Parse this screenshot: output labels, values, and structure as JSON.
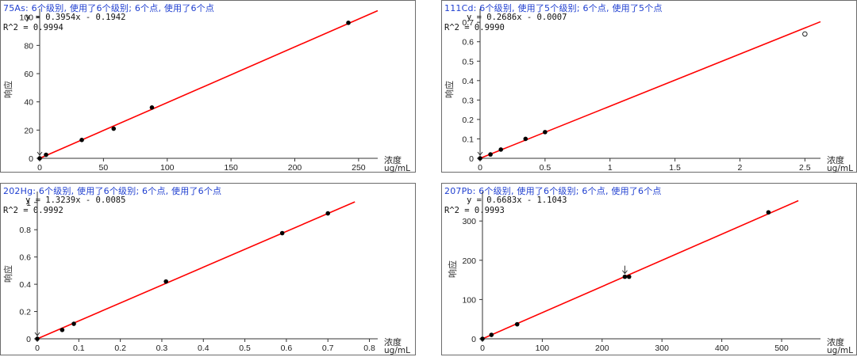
{
  "chart_data": [
    {
      "type": "scatter",
      "title": "75As: 6个级别, 使用了6个级别; 6个点, 使用了6个点",
      "equation": "y = 0.3954x - 0.1942",
      "r2": "R^2 = 0.9994",
      "ylabel": "响应",
      "xlabel": "浓度",
      "unit": "ug/mL",
      "xlim": [
        0,
        265
      ],
      "ylim": [
        0,
        106
      ],
      "xticks": [
        0,
        50,
        100,
        150,
        200,
        250
      ],
      "yticks": [
        0,
        20,
        40,
        60,
        80,
        100
      ],
      "fit": {
        "slope": 0.3954,
        "intercept": -0.1942,
        "xmax": 265
      },
      "points": [
        {
          "x": 0,
          "y": 0,
          "hollow": false
        },
        {
          "x": 5,
          "y": 2.5,
          "hollow": false
        },
        {
          "x": 33,
          "y": 13,
          "hollow": false
        },
        {
          "x": 58,
          "y": 21,
          "hollow": false
        },
        {
          "x": 88,
          "y": 36,
          "hollow": false
        },
        {
          "x": 242,
          "y": 96,
          "hollow": false
        }
      ],
      "arrow_at_x": 0,
      "colors": {
        "fit_line": "#ff0000",
        "title": "#1f3fd0"
      }
    },
    {
      "type": "scatter",
      "title": "111Cd: 6个级别, 使用了5个级别; 6个点, 使用了5个点",
      "equation": "y = 0.2686x - 0.0007",
      "r2": "R^2 = 0.9990",
      "ylabel": "响应",
      "xlabel": "浓度",
      "unit": "ug/mL",
      "xlim": [
        0,
        2.62
      ],
      "ylim": [
        0,
        0.77
      ],
      "xticks": [
        0,
        0.5,
        1,
        1.5,
        2,
        2.5
      ],
      "yticks": [
        0,
        0.1,
        0.2,
        0.3,
        0.4,
        0.5,
        0.6,
        0.7
      ],
      "fit": {
        "slope": 0.2686,
        "intercept": -0.0007,
        "xmax": 2.62
      },
      "points": [
        {
          "x": 0,
          "y": 0,
          "hollow": false
        },
        {
          "x": 0.08,
          "y": 0.02,
          "hollow": false
        },
        {
          "x": 0.16,
          "y": 0.045,
          "hollow": false
        },
        {
          "x": 0.35,
          "y": 0.1,
          "hollow": false
        },
        {
          "x": 0.5,
          "y": 0.135,
          "hollow": false
        },
        {
          "x": 2.5,
          "y": 0.64,
          "hollow": true
        }
      ],
      "arrow_at_x": 0,
      "colors": {
        "fit_line": "#ff0000",
        "title": "#1f3fd0"
      }
    },
    {
      "type": "scatter",
      "title": "202Hg: 6个级别, 使用了6个级别; 6个点, 使用了6个点",
      "equation": "y = 1.3239x - 0.0085",
      "r2": "R^2 = 0.9992",
      "ylabel": "响应",
      "xlabel": "浓度",
      "unit": "ug/mL",
      "xlim": [
        0,
        0.82
      ],
      "ylim": [
        0,
        1.08
      ],
      "xticks": [
        0,
        0.1,
        0.2,
        0.3,
        0.4,
        0.5,
        0.6,
        0.7,
        0.8
      ],
      "yticks": [
        0,
        0.2,
        0.4,
        0.6,
        0.8,
        1
      ],
      "fit": {
        "slope": 1.3239,
        "intercept": -0.0085,
        "xmax": 0.765
      },
      "points": [
        {
          "x": 0,
          "y": 0,
          "hollow": false
        },
        {
          "x": 0.06,
          "y": 0.065,
          "hollow": false
        },
        {
          "x": 0.088,
          "y": 0.11,
          "hollow": false
        },
        {
          "x": 0.31,
          "y": 0.42,
          "hollow": false
        },
        {
          "x": 0.59,
          "y": 0.775,
          "hollow": false
        },
        {
          "x": 0.7,
          "y": 0.92,
          "hollow": false
        }
      ],
      "arrow_at_x": 0,
      "colors": {
        "fit_line": "#ff0000",
        "title": "#1f3fd0"
      }
    },
    {
      "type": "scatter",
      "title": "207Pb: 6个级别, 使用了6个级别; 6个点, 使用了6个点",
      "equation": "y = 0.6683x - 1.1043",
      "r2": "R^2 = 0.9993",
      "ylabel": "响应",
      "xlabel": "浓度",
      "unit": "ug/mL",
      "xlim": [
        0,
        565
      ],
      "ylim": [
        0,
        375
      ],
      "xticks": [
        0,
        100,
        200,
        300,
        400,
        500
      ],
      "yticks": [
        0,
        100,
        200,
        300
      ],
      "fit": {
        "slope": 0.6683,
        "intercept": -1.1043,
        "xmax": 528
      },
      "points": [
        {
          "x": 0,
          "y": 0,
          "hollow": false
        },
        {
          "x": 15,
          "y": 10,
          "hollow": false
        },
        {
          "x": 58,
          "y": 37,
          "hollow": false
        },
        {
          "x": 238,
          "y": 158,
          "hollow": false
        },
        {
          "x": 245,
          "y": 158,
          "hollow": false
        },
        {
          "x": 478,
          "y": 322,
          "hollow": false
        }
      ],
      "arrow_at_x": 238,
      "colors": {
        "fit_line": "#ff0000",
        "title": "#1f3fd0"
      }
    }
  ]
}
